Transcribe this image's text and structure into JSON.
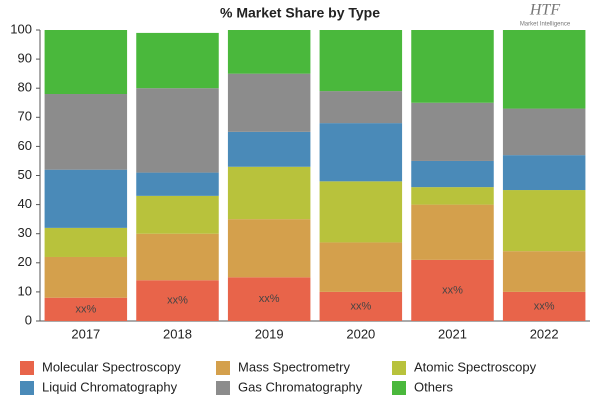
{
  "chart_data": {
    "type": "stacked_bar",
    "title": "% Market Share by Type",
    "logo": {
      "text": "HTF",
      "subtext": "Market Intelligence"
    },
    "categories": [
      "2017",
      "2018",
      "2019",
      "2020",
      "2021",
      "2022"
    ],
    "series": [
      {
        "name": "Molecular Spectroscopy",
        "color": "#e8644a",
        "values": [
          8,
          14,
          15,
          10,
          21,
          10
        ],
        "value_labels": [
          "xx%",
          "xx%",
          "xx%",
          "xx%",
          "xx%",
          "xx%"
        ]
      },
      {
        "name": "Mass Spectrometry",
        "color": "#d4a04c",
        "values": [
          14,
          16,
          20,
          17,
          19,
          14
        ]
      },
      {
        "name": "Atomic Spectroscopy",
        "color": "#b8c23c",
        "values": [
          10,
          13,
          18,
          21,
          6,
          21
        ]
      },
      {
        "name": "Liquid Chromatography",
        "color": "#4a8ab8",
        "values": [
          20,
          8,
          12,
          20,
          9,
          12
        ]
      },
      {
        "name": "Gas Chromatography",
        "color": "#8c8c8c",
        "values": [
          26,
          29,
          20,
          11,
          20,
          16
        ]
      },
      {
        "name": "Others",
        "color": "#4ab83c",
        "values": [
          22,
          19,
          15,
          21,
          25,
          27
        ]
      }
    ],
    "ylim": [
      0,
      100
    ],
    "yticks": [
      0,
      10,
      20,
      30,
      40,
      50,
      60,
      70,
      80,
      90,
      100
    ],
    "grid": false
  }
}
